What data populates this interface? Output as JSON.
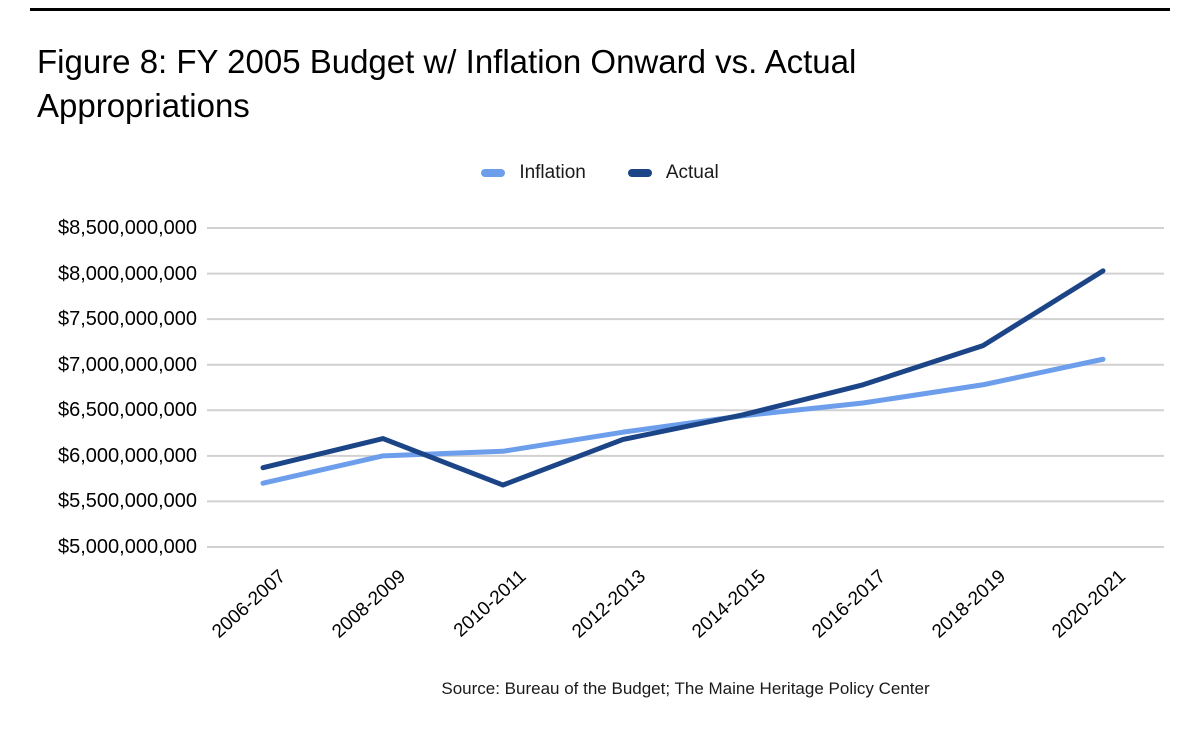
{
  "header": {
    "title_line1": "Figure 8: FY 2005 Budget w/ Inflation Onward vs. Actual",
    "title_line2": "Appropriations"
  },
  "chart_data": {
    "type": "line",
    "title": "Figure 8: FY 2005 Budget w/ Inflation Onward vs. Actual Appropriations",
    "categories": [
      "2006-2007",
      "2008-2009",
      "2010-2011",
      "2012-2013",
      "2014-2015",
      "2016-2017",
      "2018-2019",
      "2020-2021"
    ],
    "series": [
      {
        "name": "Inflation",
        "color": "#6d9eeb",
        "values": [
          5700000000,
          6000000000,
          6050000000,
          6260000000,
          6440000000,
          6580000000,
          6780000000,
          7060000000
        ]
      },
      {
        "name": "Actual",
        "color": "#1c4587",
        "values": [
          5870000000,
          6190000000,
          5680000000,
          6180000000,
          6450000000,
          6780000000,
          7210000000,
          8030000000
        ]
      }
    ],
    "ylim": [
      5000000000,
      8500000000
    ],
    "ytick_step": 500000000,
    "ytick_labels": [
      "$8,500,000,000",
      "$8,000,000,000",
      "$7,500,000,000",
      "$7,000,000,000",
      "$6,500,000,000",
      "$6,000,000,000",
      "$5,500,000,000",
      "$5,000,000,000"
    ],
    "grid": true,
    "gridline_color": "#d1d1d1",
    "legend_position": "top"
  },
  "footer": {
    "source": "Source: Bureau of the Budget; The Maine Heritage Policy Center"
  }
}
